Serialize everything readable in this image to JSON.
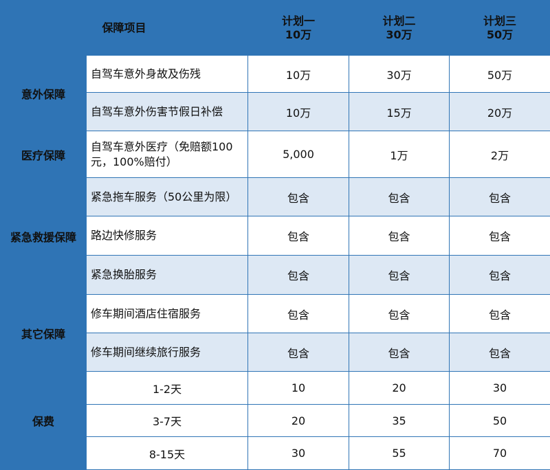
{
  "header": {
    "item_label": "保障项目",
    "plans": [
      {
        "name": "计划一",
        "amount": "10万"
      },
      {
        "name": "计划二",
        "amount": "30万"
      },
      {
        "name": "计划三",
        "amount": "50万"
      }
    ]
  },
  "categories": {
    "accident": "意外保障",
    "medical": "医疗保障",
    "rescue": "紧急救援保障",
    "other": "其它保障",
    "premium": "保费"
  },
  "rows": [
    {
      "item": "自驾车意外身故及伤残",
      "values": [
        "10万",
        "30万",
        "50万"
      ]
    },
    {
      "item": "自驾车意外伤害节假日补偿",
      "values": [
        "10万",
        "15万",
        "20万"
      ]
    },
    {
      "item": "自驾车意外医疗（免赔额100元，100%赔付）",
      "values": [
        "5,000",
        "1万",
        "2万"
      ]
    },
    {
      "item": "紧急拖车服务（50公里为限）",
      "values": [
        "包含",
        "包含",
        "包含"
      ]
    },
    {
      "item": "路边快修服务",
      "values": [
        "包含",
        "包含",
        "包含"
      ]
    },
    {
      "item": "紧急换胎服务",
      "values": [
        "包含",
        "包含",
        "包含"
      ]
    },
    {
      "item": "修车期间酒店住宿服务",
      "values": [
        "包含",
        "包含",
        "包含"
      ]
    },
    {
      "item": "修车期间继续旅行服务",
      "values": [
        "包含",
        "包含",
        "包含"
      ]
    },
    {
      "item": "1-2天",
      "values": [
        "10",
        "20",
        "30"
      ]
    },
    {
      "item": "3-7天",
      "values": [
        "20",
        "35",
        "50"
      ]
    },
    {
      "item": "8-15天",
      "values": [
        "30",
        "55",
        "70"
      ]
    }
  ]
}
